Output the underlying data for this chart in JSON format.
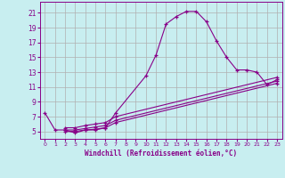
{
  "xlabel": "Windchill (Refroidissement éolien,°C)",
  "bg_color": "#c8eef0",
  "line_color": "#880088",
  "grid_color": "#b0b0b0",
  "xlim": [
    -0.5,
    23.5
  ],
  "ylim": [
    4.0,
    22.5
  ],
  "xticks": [
    0,
    1,
    2,
    3,
    4,
    5,
    6,
    7,
    8,
    9,
    10,
    11,
    12,
    13,
    14,
    15,
    16,
    17,
    18,
    19,
    20,
    21,
    22,
    23
  ],
  "yticks": [
    5,
    7,
    9,
    11,
    13,
    15,
    17,
    19,
    21
  ],
  "curve1_x": [
    0,
    1,
    2,
    3,
    4,
    5,
    6,
    7,
    10,
    11,
    12,
    13,
    14,
    15,
    16,
    17,
    18,
    19,
    20,
    21,
    22,
    23
  ],
  "curve1_y": [
    7.5,
    5.2,
    5.2,
    4.8,
    5.2,
    5.2,
    5.5,
    7.5,
    12.5,
    15.3,
    19.5,
    20.5,
    21.2,
    21.2,
    19.8,
    17.2,
    15.0,
    13.3,
    13.3,
    13.0,
    11.3,
    12.0
  ],
  "curve2_x": [
    2,
    3,
    4,
    5,
    6,
    7,
    23
  ],
  "curve2_y": [
    5.5,
    5.5,
    5.8,
    6.0,
    6.2,
    7.0,
    12.3
  ],
  "curve3_x": [
    2,
    3,
    4,
    5,
    6,
    7,
    23
  ],
  "curve3_y": [
    5.2,
    5.2,
    5.4,
    5.6,
    5.8,
    6.5,
    11.8
  ],
  "curve4_x": [
    2,
    3,
    4,
    5,
    6,
    7,
    23
  ],
  "curve4_y": [
    5.0,
    5.0,
    5.2,
    5.3,
    5.5,
    6.2,
    11.5
  ]
}
